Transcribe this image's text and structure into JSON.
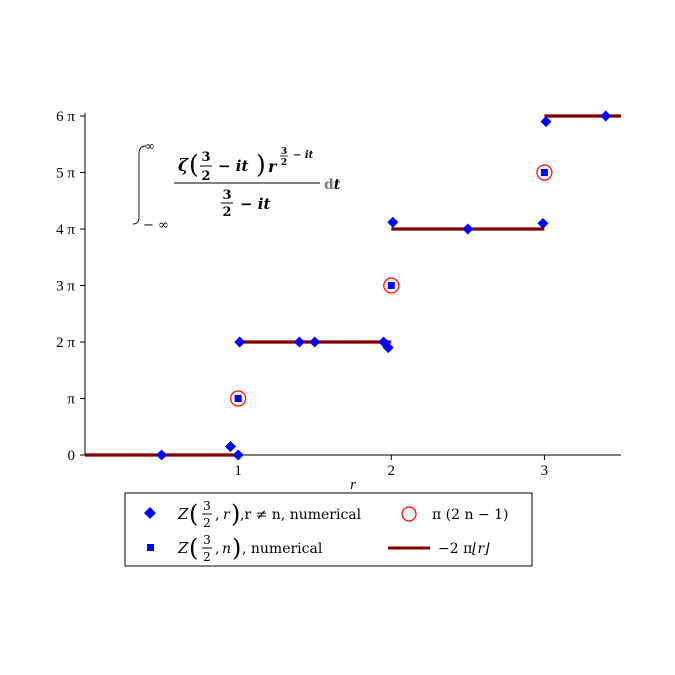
{
  "chart_data": {
    "type": "scatter",
    "xlabel": "r",
    "ylabel": "",
    "xlim": [
      0,
      3.5
    ],
    "ylim": [
      0,
      6
    ],
    "y_unit": "π",
    "x_ticks": [
      1,
      2,
      3
    ],
    "x_tick_labels": [
      "1",
      "2",
      "3"
    ],
    "y_ticks": [
      0,
      1,
      2,
      3,
      4,
      5,
      6
    ],
    "y_tick_labels": [
      "0",
      "π",
      "2 π",
      "3 π",
      "4 π",
      "5 π",
      "6 π"
    ],
    "annotation": {
      "integral_lower": "− ∞",
      "integral_upper": "∞",
      "zeta": "ζ",
      "three": "3",
      "two": "2",
      "minus_it": "− it",
      "r": "r",
      "exp_three": "3",
      "exp_two": "2",
      "exp_minus_it": "− it",
      "dt_d": "d",
      "dt_t": "t"
    },
    "series": [
      {
        "name": "Z(3/2, r), r ≠ n, numerical",
        "marker": "diamond",
        "color": "#0000ff",
        "points": [
          [
            0.5,
            0
          ],
          [
            0.95,
            0.15
          ],
          [
            1.0,
            0
          ],
          [
            1.01,
            2
          ],
          [
            1.4,
            2
          ],
          [
            1.5,
            2
          ],
          [
            1.95,
            2
          ],
          [
            1.98,
            1.9
          ],
          [
            2.01,
            4.12
          ],
          [
            2.5,
            4
          ],
          [
            2.99,
            4.1
          ],
          [
            3.01,
            5.9
          ],
          [
            3.4,
            6
          ]
        ]
      },
      {
        "name": "Z(3/2, n), numerical",
        "marker": "square",
        "color": "#0000ff",
        "points": [
          [
            1,
            1
          ],
          [
            2,
            3
          ],
          [
            3,
            5
          ]
        ]
      },
      {
        "name": "π (2 n − 1)",
        "marker": "circle",
        "color": "#ff0000",
        "points": [
          [
            1,
            1
          ],
          [
            2,
            3
          ],
          [
            3,
            5
          ]
        ]
      },
      {
        "name": "−2 π ⌊r⌋",
        "marker": "step-line",
        "color": "#800000",
        "segments": [
          [
            0,
            1,
            0
          ],
          [
            1,
            2,
            2
          ],
          [
            2,
            3,
            4
          ],
          [
            3,
            3.5,
            6
          ]
        ]
      }
    ],
    "legend": {
      "position": "bottom",
      "entries": [
        {
          "z": "Z",
          "three": "3",
          "two": "2",
          "arg": "r",
          "suffix": ",r ≠ n, numerical"
        },
        {
          "text": "π (2 n − 1)"
        },
        {
          "z": "Z",
          "three": "3",
          "two": "2",
          "arg": "n",
          "suffix": " , numerical"
        },
        {
          "prefix": "−2 π",
          "floor": "⌊r⌋"
        }
      ]
    }
  }
}
